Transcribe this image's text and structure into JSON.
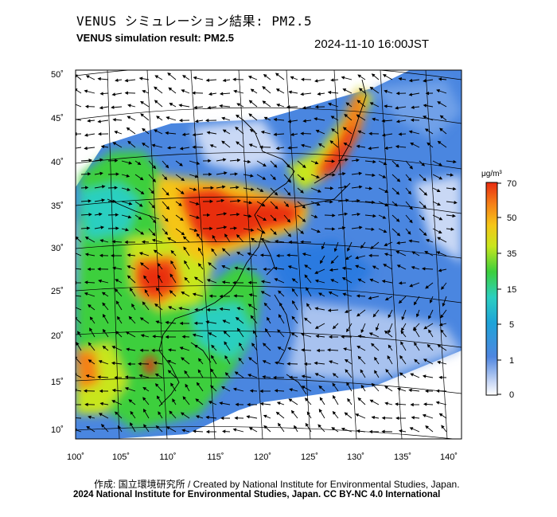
{
  "header": {
    "title_jp": "VENUS シミュレーション結果: PM2.5",
    "title_en": "VENUS simulation result: PM2.5",
    "timestamp": "2024-11-10 16:00JST"
  },
  "axes": {
    "lat_labels": [
      "50˚",
      "45˚",
      "40˚",
      "35˚",
      "30˚",
      "25˚",
      "20˚",
      "15˚",
      "10˚"
    ],
    "lon_labels": [
      "100˚",
      "105˚",
      "110˚",
      "115˚",
      "120˚",
      "125˚",
      "130˚",
      "135˚",
      "140˚"
    ]
  },
  "colorbar": {
    "unit": "μg/m³",
    "ticks": [
      "70",
      "50",
      "35",
      "15",
      "5",
      "1",
      "0"
    ],
    "colors": [
      "#ffffff",
      "#6fa0e8",
      "#1a6dd8",
      "#2ec4c9",
      "#3ccf3c",
      "#c8e61e",
      "#f5c518",
      "#f57f17",
      "#e82b10"
    ]
  },
  "footer": {
    "credit": "作成: 国立環境研究所 / Created by National Institute for Environmental Studies, Japan.",
    "license": "2024 National Institute for Environmental Studies, Japan. CC BY-NC 4.0 International"
  }
}
